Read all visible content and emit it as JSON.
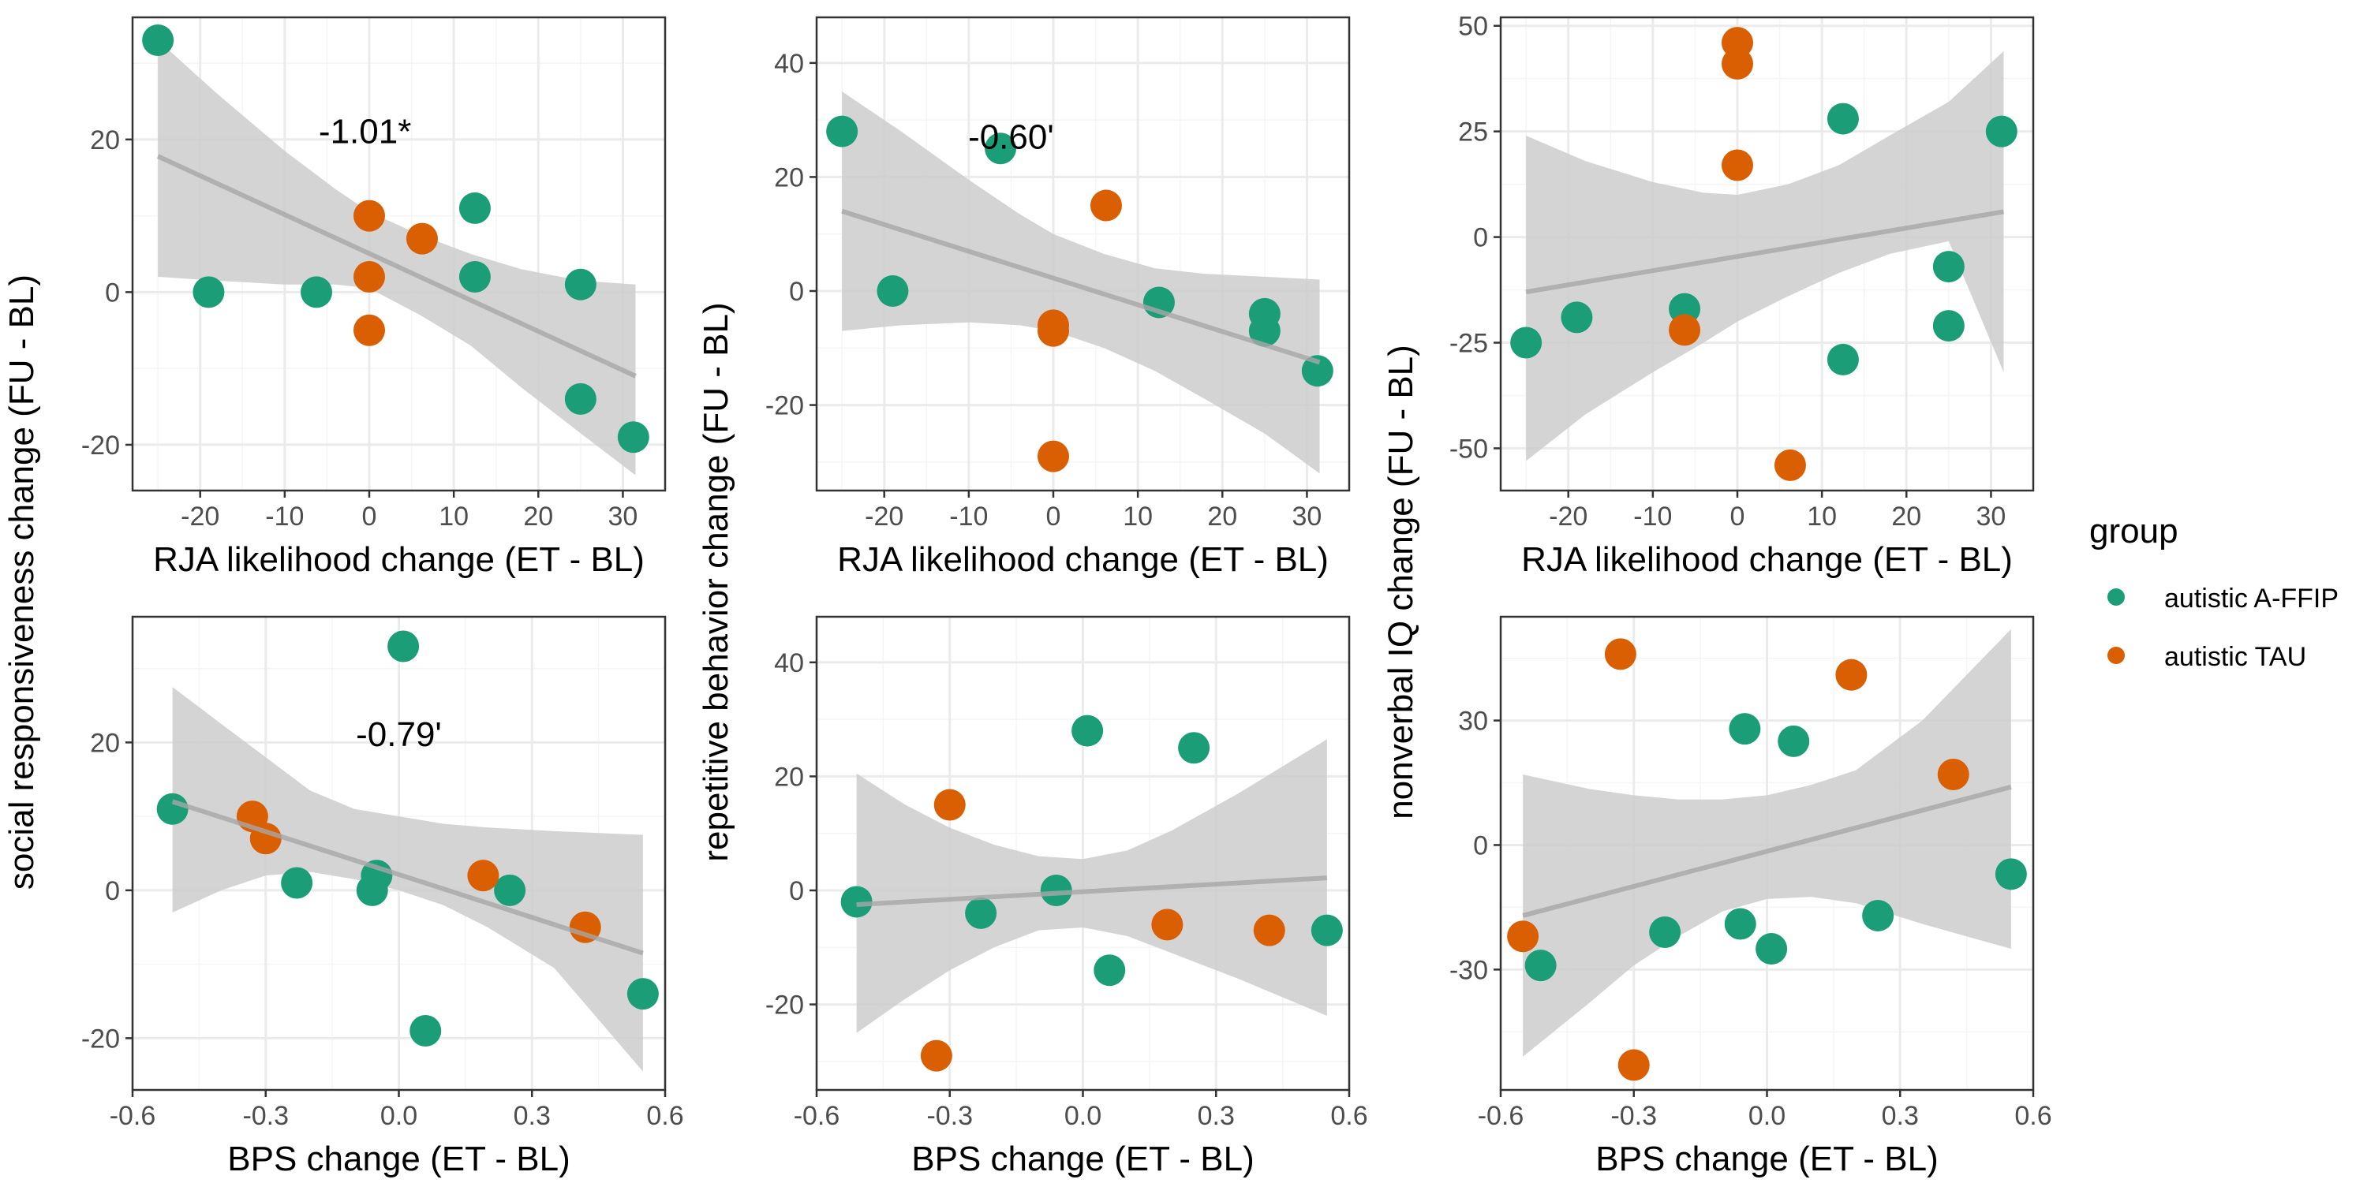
{
  "colors": {
    "autistic A-FFIP": "#1b9e77",
    "autistic TAU": "#d95f02",
    "ribbon": "#cccccc",
    "line": "#a6a6a6",
    "grid_major": "#ebebeb",
    "grid_minor": "#f5f5f5",
    "border": "#333333"
  },
  "legend": {
    "title": "group",
    "items": [
      {
        "label": "autistic A-FFIP",
        "color": "#1b9e77"
      },
      {
        "label": "autistic TAU",
        "color": "#d95f02"
      }
    ]
  },
  "row_y_labels": [
    {
      "text": "social responsiveness change (FU - BL)"
    },
    {
      "text": "repetitive behavior change (FU - BL)"
    },
    {
      "text": "nonverbal IQ change (FU - BL)"
    }
  ],
  "chart_data": [
    {
      "type": "scatter",
      "panel": "top-left",
      "xlabel": "RJA likelihood change (ET - BL)",
      "ylabel": "social responsiveness change (FU - BL)",
      "annotation": "-1.01*",
      "annotation_pos": {
        "x": -0.5,
        "y": 19.5
      },
      "xlim": [
        -28,
        35
      ],
      "ylim": [
        -26,
        36
      ],
      "xticks": [
        -20,
        -10,
        0,
        10,
        20,
        30
      ],
      "yticks": [
        -20,
        0,
        20
      ],
      "fit": {
        "x0": -25,
        "x1": 31.5,
        "y0": 17.8,
        "y1": -11
      },
      "ribbon": [
        [
          -25,
          33,
          2
        ],
        [
          -18,
          26,
          1.5
        ],
        [
          -10,
          18.5,
          1
        ],
        [
          -4,
          13.5,
          1
        ],
        [
          0,
          10.5,
          0.5
        ],
        [
          6,
          7.5,
          -3
        ],
        [
          12,
          5,
          -7
        ],
        [
          18,
          3,
          -12.5
        ],
        [
          25,
          1.5,
          -18.5
        ],
        [
          31.5,
          1,
          -24
        ]
      ],
      "series": [
        {
          "name": "autistic A-FFIP",
          "points": [
            [
              -25,
              33
            ],
            [
              -19,
              0
            ],
            [
              -6.25,
              0
            ],
            [
              12.5,
              11
            ],
            [
              12.5,
              2
            ],
            [
              25,
              1
            ],
            [
              25,
              -14
            ],
            [
              31.25,
              -19
            ]
          ]
        },
        {
          "name": "autistic TAU",
          "points": [
            [
              0,
              10
            ],
            [
              0,
              2
            ],
            [
              0,
              -5
            ],
            [
              6.25,
              7
            ]
          ]
        }
      ]
    },
    {
      "type": "scatter",
      "panel": "top-middle",
      "xlabel": "RJA likelihood change (ET - BL)",
      "ylabel": "repetitive behavior change (FU - BL)",
      "annotation": "-0.60'",
      "annotation_pos": {
        "x": -5,
        "y": 25
      },
      "xlim": [
        -28,
        35
      ],
      "ylim": [
        -35,
        48
      ],
      "xticks": [
        -20,
        -10,
        0,
        10,
        20,
        30
      ],
      "yticks": [
        -20,
        0,
        20,
        40
      ],
      "fit": {
        "x0": -25,
        "x1": 31.5,
        "y0": 14,
        "y1": -12.5
      },
      "ribbon": [
        [
          -25,
          35,
          -7
        ],
        [
          -18,
          28,
          -6
        ],
        [
          -10,
          19.5,
          -5.5
        ],
        [
          -4,
          13.5,
          -6
        ],
        [
          0,
          10,
          -7
        ],
        [
          6,
          6.5,
          -10
        ],
        [
          12,
          4,
          -14
        ],
        [
          18,
          3,
          -19
        ],
        [
          25,
          2.5,
          -25
        ],
        [
          31.5,
          2,
          -32
        ]
      ],
      "series": [
        {
          "name": "autistic A-FFIP",
          "points": [
            [
              -25,
              28
            ],
            [
              -19,
              0
            ],
            [
              -6.25,
              25
            ],
            [
              12.5,
              -2
            ],
            [
              25,
              -4
            ],
            [
              25,
              -7
            ],
            [
              31.25,
              -14
            ]
          ]
        },
        {
          "name": "autistic TAU",
          "points": [
            [
              0,
              -6
            ],
            [
              0,
              -7
            ],
            [
              0,
              -29
            ],
            [
              6.25,
              15
            ]
          ]
        }
      ]
    },
    {
      "type": "scatter",
      "panel": "top-right",
      "xlabel": "RJA likelihood change (ET - BL)",
      "ylabel": "nonverbal IQ change (FU - BL)",
      "annotation": "",
      "xlim": [
        -28,
        35
      ],
      "ylim": [
        -60,
        52
      ],
      "xticks": [
        -20,
        -10,
        0,
        10,
        20,
        30
      ],
      "yticks": [
        -50,
        -25,
        0,
        25,
        50
      ],
      "fit": {
        "x0": -25,
        "x1": 31.5,
        "y0": -13,
        "y1": 6
      },
      "ribbon": [
        [
          -25,
          24,
          -53
        ],
        [
          -18,
          18,
          -42
        ],
        [
          -10,
          13,
          -32
        ],
        [
          -4,
          10.5,
          -25
        ],
        [
          0,
          10,
          -20
        ],
        [
          6,
          12.5,
          -14
        ],
        [
          12,
          17,
          -8.5
        ],
        [
          18,
          24,
          -4
        ],
        [
          25,
          32,
          -1
        ],
        [
          31.5,
          44,
          -32
        ]
      ],
      "series": [
        {
          "name": "autistic A-FFIP",
          "points": [
            [
              -25,
              -25
            ],
            [
              -19,
              -19
            ],
            [
              -6.25,
              -17
            ],
            [
              12.5,
              28
            ],
            [
              12.5,
              -29
            ],
            [
              25,
              -7
            ],
            [
              25,
              -21
            ],
            [
              31.25,
              25
            ]
          ]
        },
        {
          "name": "autistic TAU",
          "points": [
            [
              0,
              46
            ],
            [
              0,
              41
            ],
            [
              0,
              17
            ],
            [
              -6.25,
              -22
            ],
            [
              6.25,
              -54
            ]
          ]
        }
      ]
    },
    {
      "type": "scatter",
      "panel": "bottom-left",
      "xlabel": "BPS change (ET - BL)",
      "ylabel": "social responsiveness change (FU - BL)",
      "annotation": "-0.79'",
      "annotation_pos": {
        "x": 0,
        "y": 19.5
      },
      "xlim": [
        -0.6,
        0.6
      ],
      "ylim": [
        -27,
        37
      ],
      "xticks": [
        -0.6,
        -0.3,
        0.0,
        0.3,
        0.6
      ],
      "yticks": [
        -20,
        0,
        20
      ],
      "fit": {
        "x0": -0.51,
        "x1": 0.55,
        "y0": 12,
        "y1": -8.5
      },
      "ribbon": [
        [
          -0.51,
          27.5,
          -3
        ],
        [
          -0.4,
          22.5,
          0
        ],
        [
          -0.3,
          18,
          2
        ],
        [
          -0.2,
          13.5,
          2.5
        ],
        [
          -0.1,
          11,
          1.5
        ],
        [
          0,
          10,
          0
        ],
        [
          0.1,
          9,
          -2
        ],
        [
          0.2,
          8.5,
          -5
        ],
        [
          0.35,
          8,
          -10.5
        ],
        [
          0.55,
          7.5,
          -24.5
        ]
      ],
      "series": [
        {
          "name": "autistic A-FFIP",
          "points": [
            [
              -0.51,
              11
            ],
            [
              -0.23,
              1
            ],
            [
              -0.06,
              0
            ],
            [
              -0.05,
              2
            ],
            [
              0.01,
              33
            ],
            [
              0.06,
              -19
            ],
            [
              0.25,
              0
            ],
            [
              0.55,
              -14
            ]
          ]
        },
        {
          "name": "autistic TAU",
          "points": [
            [
              -0.33,
              10
            ],
            [
              -0.3,
              7
            ],
            [
              0.19,
              2
            ],
            [
              0.42,
              -5
            ]
          ]
        }
      ]
    },
    {
      "type": "scatter",
      "panel": "bottom-middle",
      "xlabel": "BPS change (ET - BL)",
      "ylabel": "repetitive behavior change (FU - BL)",
      "annotation": "",
      "xlim": [
        -0.6,
        0.6
      ],
      "ylim": [
        -35,
        48
      ],
      "xticks": [
        -0.6,
        -0.3,
        0.0,
        0.3,
        0.6
      ],
      "yticks": [
        -20,
        0,
        20,
        40
      ],
      "fit": {
        "x0": -0.51,
        "x1": 0.55,
        "y0": -2.5,
        "y1": 2.2
      },
      "ribbon": [
        [
          -0.51,
          20.5,
          -25
        ],
        [
          -0.4,
          15,
          -19
        ],
        [
          -0.3,
          11,
          -14
        ],
        [
          -0.2,
          8,
          -10
        ],
        [
          -0.1,
          6,
          -7
        ],
        [
          0,
          5.5,
          -6.5
        ],
        [
          0.1,
          7,
          -8
        ],
        [
          0.2,
          10.5,
          -11
        ],
        [
          0.35,
          17,
          -15.5
        ],
        [
          0.55,
          26.5,
          -22
        ]
      ],
      "series": [
        {
          "name": "autistic A-FFIP",
          "points": [
            [
              -0.51,
              -2
            ],
            [
              -0.23,
              -4
            ],
            [
              -0.06,
              0
            ],
            [
              0.01,
              28
            ],
            [
              0.06,
              -14
            ],
            [
              0.25,
              25
            ],
            [
              0.55,
              -7
            ]
          ]
        },
        {
          "name": "autistic TAU",
          "points": [
            [
              -0.33,
              -29
            ],
            [
              -0.3,
              15
            ],
            [
              0.19,
              -6
            ],
            [
              0.42,
              -7
            ]
          ]
        }
      ]
    },
    {
      "type": "scatter",
      "panel": "bottom-right",
      "xlabel": "BPS change (ET - BL)",
      "ylabel": "nonverbal IQ change (FU - BL)",
      "annotation": "",
      "xlim": [
        -0.6,
        0.6
      ],
      "ylim": [
        -59,
        55
      ],
      "xticks": [
        -0.6,
        -0.3,
        0.0,
        0.3,
        0.6
      ],
      "yticks": [
        -30,
        0,
        30
      ],
      "fit": {
        "x0": -0.55,
        "x1": 0.55,
        "y0": -17,
        "y1": 14
      },
      "ribbon": [
        [
          -0.55,
          17,
          -51
        ],
        [
          -0.4,
          13.5,
          -38
        ],
        [
          -0.3,
          12,
          -29
        ],
        [
          -0.2,
          11,
          -22
        ],
        [
          -0.1,
          11,
          -16
        ],
        [
          0,
          12,
          -13
        ],
        [
          0.1,
          14.5,
          -12.5
        ],
        [
          0.2,
          18,
          -14
        ],
        [
          0.35,
          30,
          -19
        ],
        [
          0.55,
          52,
          -25
        ]
      ],
      "series": [
        {
          "name": "autistic A-FFIP",
          "points": [
            [
              -0.51,
              -29
            ],
            [
              -0.23,
              -21
            ],
            [
              -0.06,
              -19
            ],
            [
              -0.05,
              28
            ],
            [
              0.01,
              -25
            ],
            [
              0.06,
              25
            ],
            [
              0.25,
              -17
            ],
            [
              0.55,
              -7
            ]
          ]
        },
        {
          "name": "autistic TAU",
          "points": [
            [
              -0.55,
              -22
            ],
            [
              -0.33,
              46
            ],
            [
              -0.3,
              -53
            ],
            [
              0.19,
              41
            ],
            [
              0.42,
              17
            ]
          ]
        }
      ]
    }
  ]
}
